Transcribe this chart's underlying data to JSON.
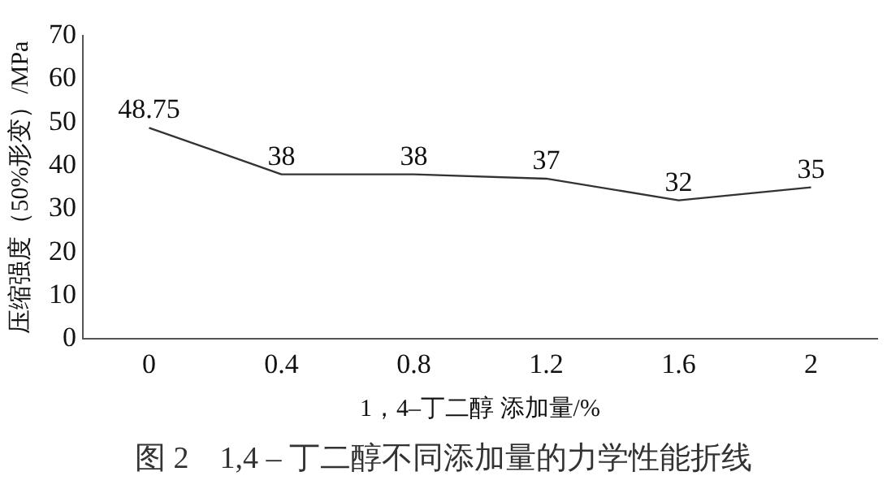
{
  "chart_data": {
    "type": "line",
    "xlabel": "1，4–丁二醇 添加量/%",
    "ylabel": "压缩强度（50%形变）/MPa",
    "categories": [
      "0",
      "0.4",
      "0.8",
      "1.2",
      "1.6",
      "2"
    ],
    "series": [
      {
        "color": "#333333",
        "values": [
          48.75,
          38,
          38,
          37,
          32,
          35
        ]
      }
    ],
    "ylim": [
      0,
      70
    ],
    "yticks": [
      0,
      10,
      20,
      30,
      40,
      50,
      60,
      70
    ],
    "grid": false,
    "legend": false,
    "marker": "none",
    "line_style": "solid",
    "data_labels": true,
    "annotations": [
      "图 2　1,4 – 丁二醇不同添加量的力学性能折线"
    ]
  }
}
